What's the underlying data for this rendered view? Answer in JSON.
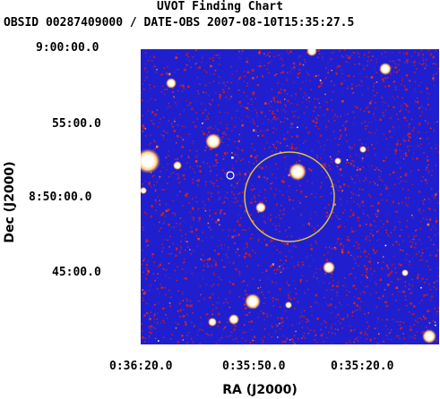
{
  "chart": {
    "title": "UVOT Finding Chart",
    "subtitle": "OBSID 00287409000 / DATE-OBS 2007-08-10T15:35:27.5",
    "xlabel": "RA (J2000)",
    "ylabel": "Dec (J2000)",
    "dec_ticks": [
      "9:00:00.0",
      "55:00.0",
      "8:50:00.0",
      "45:00.0"
    ],
    "ra_ticks": [
      "0:36:20.0",
      "0:35:50.0",
      "0:35:20.0"
    ]
  },
  "colors": {
    "background": "#1f1fd0",
    "noise_red": "#c8202a",
    "star_core": "#ffffff",
    "star_halo": "#ffd27a",
    "error_circle": "#e0c040"
  }
}
